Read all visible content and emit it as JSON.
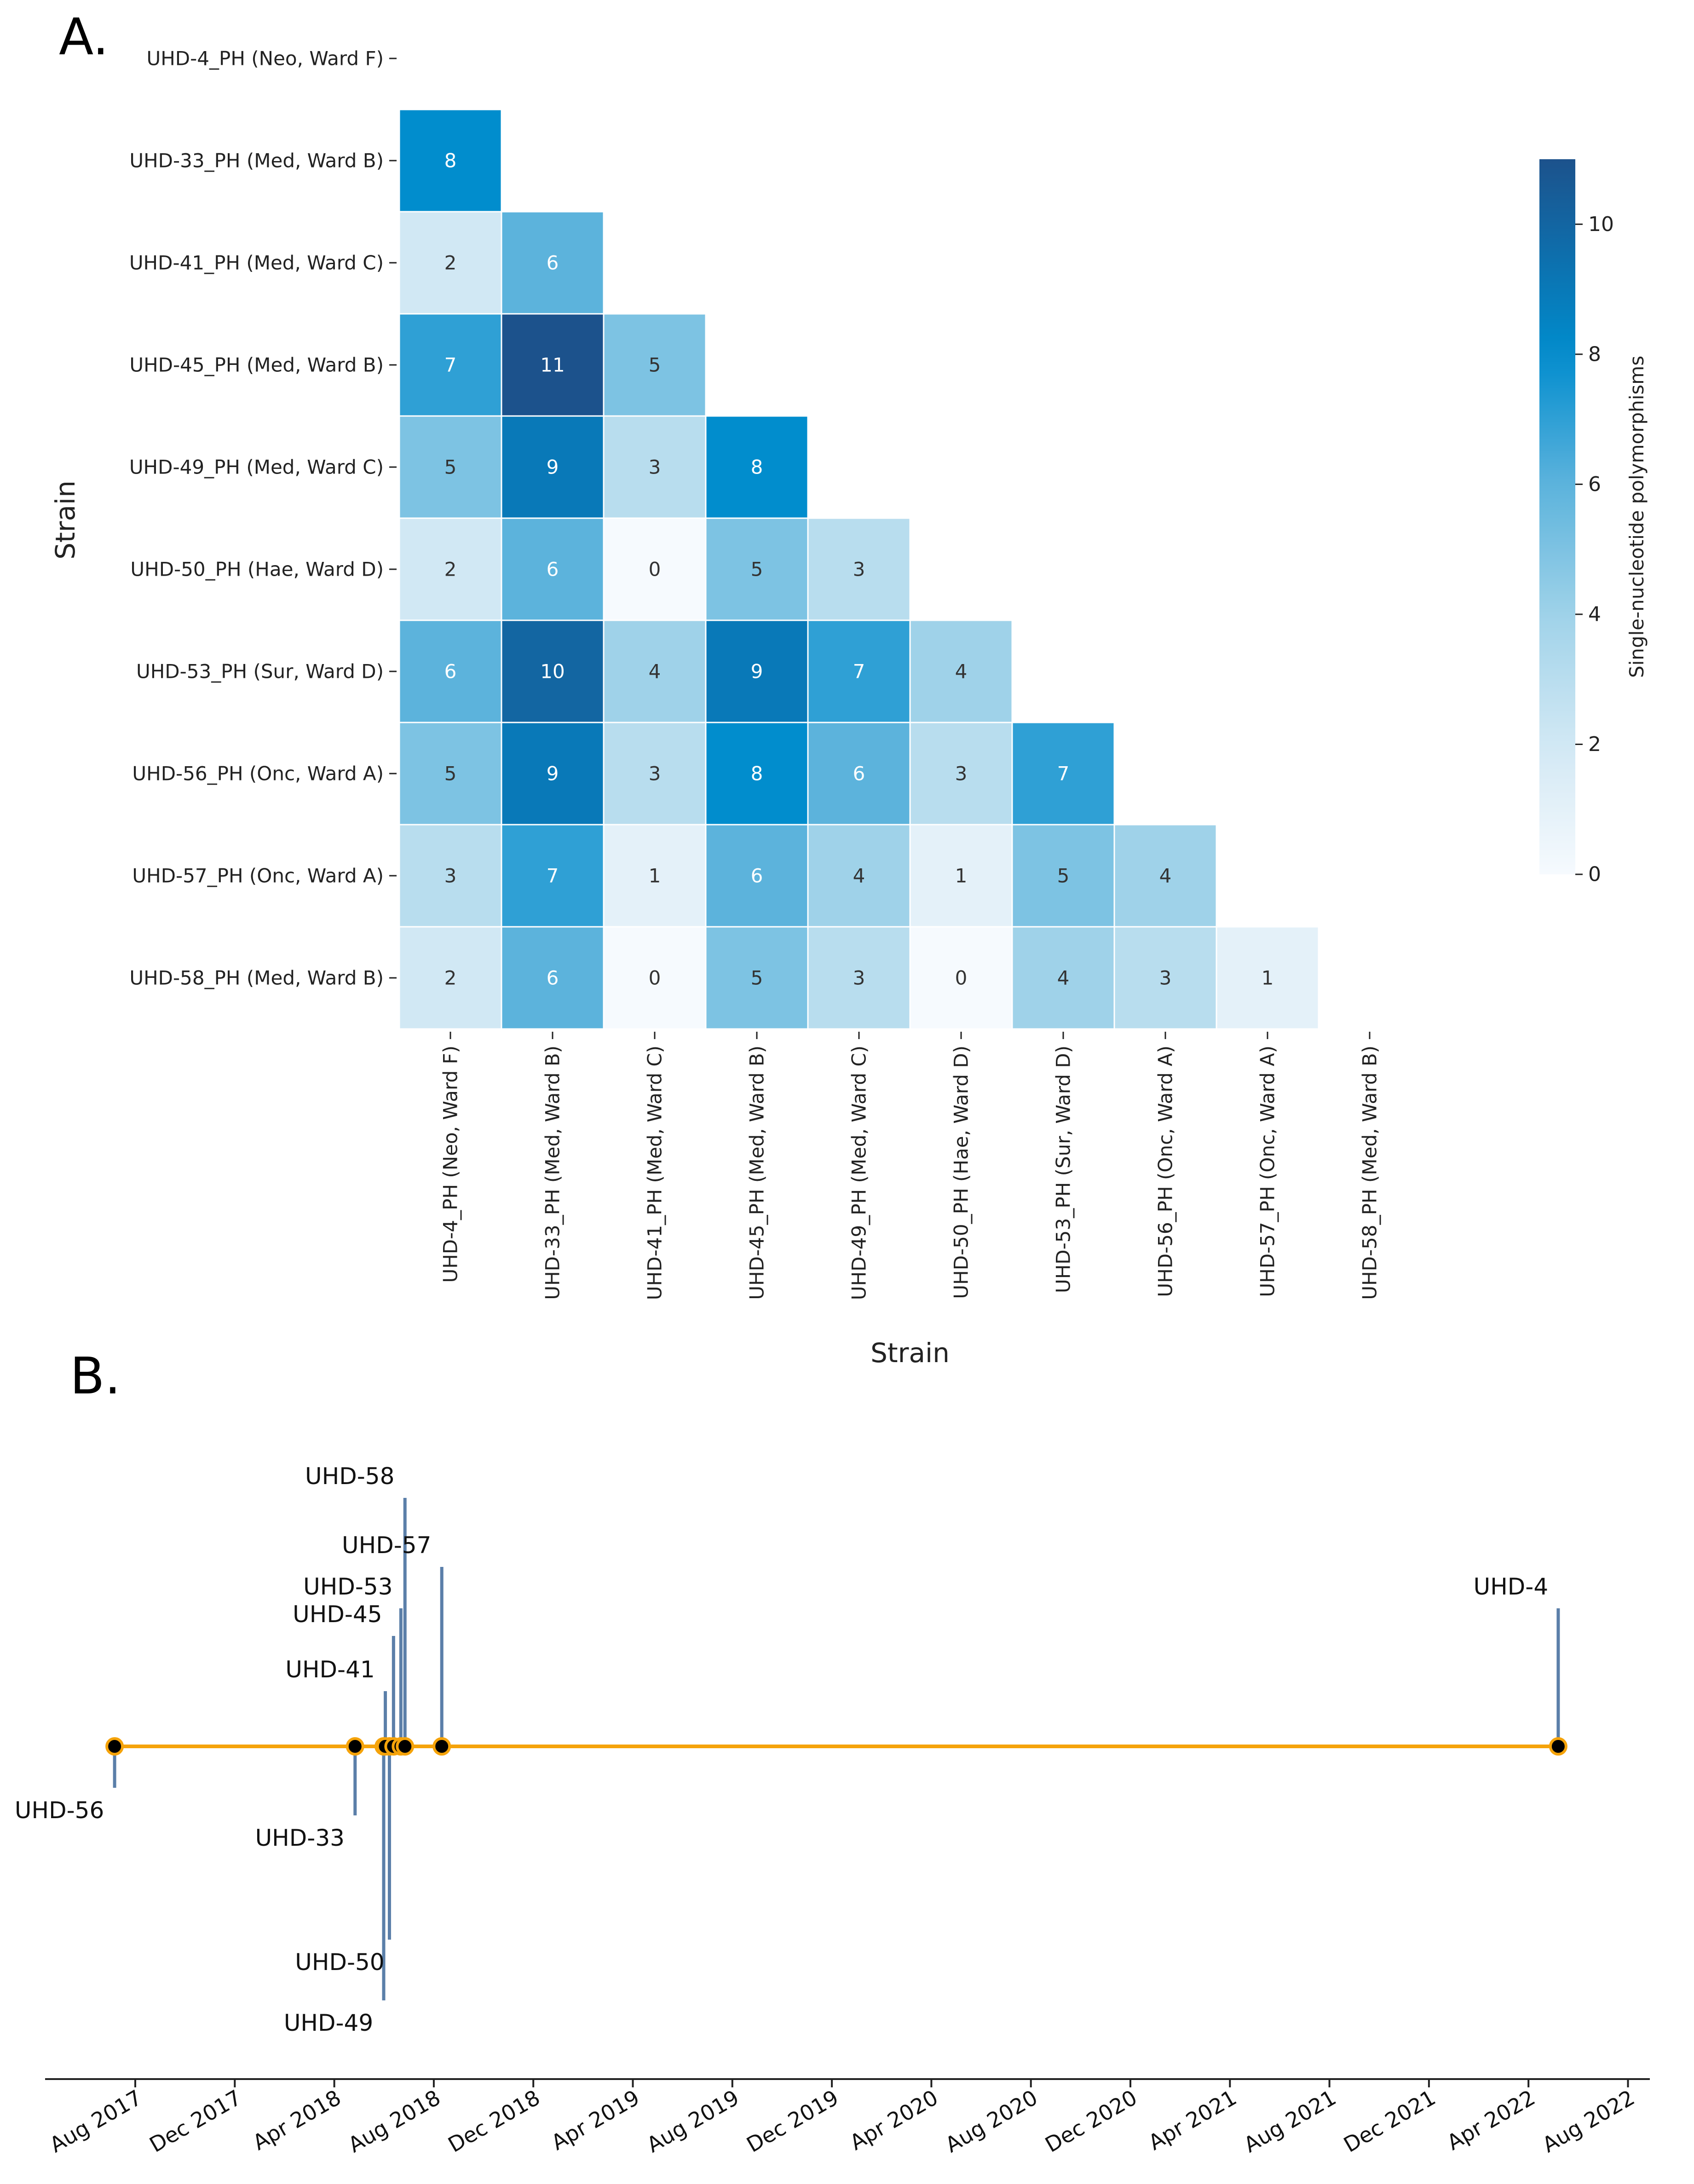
{
  "panels": {
    "a_label": "A.",
    "b_label": "B."
  },
  "chart_data": [
    {
      "type": "heatmap",
      "panel": "A.",
      "rows": [
        "UHD-4_PH (Neo, Ward F)",
        "UHD-33_PH (Med, Ward B)",
        "UHD-41_PH (Med, Ward C)",
        "UHD-45_PH (Med, Ward B)",
        "UHD-49_PH (Med, Ward C)",
        "UHD-50_PH (Hae, Ward D)",
        "UHD-53_PH (Sur, Ward D)",
        "UHD-56_PH (Onc, Ward A)",
        "UHD-57_PH (Onc, Ward A)",
        "UHD-58_PH (Med, Ward B)"
      ],
      "columns": [
        "UHD-4_PH (Neo, Ward F)",
        "UHD-33_PH (Med, Ward B)",
        "UHD-41_PH (Med, Ward C)",
        "UHD-45_PH (Med, Ward B)",
        "UHD-49_PH (Med, Ward C)",
        "UHD-50_PH (Hae, Ward D)",
        "UHD-53_PH (Sur, Ward D)",
        "UHD-56_PH (Onc, Ward A)",
        "UHD-57_PH (Onc, Ward A)",
        "UHD-58_PH (Med, Ward B)"
      ],
      "values": [
        [],
        [
          8
        ],
        [
          2,
          6
        ],
        [
          7,
          11,
          5
        ],
        [
          5,
          9,
          3,
          8
        ],
        [
          2,
          6,
          0,
          5,
          3
        ],
        [
          6,
          10,
          4,
          9,
          7,
          4
        ],
        [
          5,
          9,
          3,
          8,
          6,
          3,
          7
        ],
        [
          3,
          7,
          1,
          6,
          4,
          1,
          5,
          4
        ],
        [
          2,
          6,
          0,
          5,
          3,
          0,
          4,
          3,
          1
        ]
      ],
      "xlabel": "Strain",
      "ylabel": "Strain",
      "colorbar": {
        "label": "Single-nucleotide polymorphisms",
        "range": [
          0,
          11
        ],
        "ticks": [
          "0",
          "2",
          "4",
          "6",
          "8",
          "10"
        ],
        "colormap": "Blues"
      }
    },
    {
      "type": "timeline",
      "panel": "B.",
      "events": [
        {
          "label": "UHD-56",
          "date": "2017-06-25",
          "stem": -0.15
        },
        {
          "label": "UHD-33",
          "date": "2018-04-15",
          "stem": -0.25
        },
        {
          "label": "UHD-49",
          "date": "2018-05-20",
          "stem": -0.92
        },
        {
          "label": "UHD-50",
          "date": "2018-05-27",
          "stem": -0.7
        },
        {
          "label": "UHD-41",
          "date": "2018-05-22",
          "stem": 0.2
        },
        {
          "label": "UHD-45",
          "date": "2018-06-01",
          "stem": 0.4
        },
        {
          "label": "UHD-53",
          "date": "2018-06-10",
          "stem": 0.5
        },
        {
          "label": "UHD-58",
          "date": "2018-06-15",
          "stem": 0.9
        },
        {
          "label": "UHD-57",
          "date": "2018-07-30",
          "stem": 0.65
        },
        {
          "label": "UHD-4",
          "date": "2022-04-25",
          "stem": 0.5
        }
      ],
      "x_range": [
        "2017-04-01",
        "2022-08-15"
      ],
      "x_ticks": [
        "Aug 2017",
        "Dec 2017",
        "Apr 2018",
        "Aug 2018",
        "Dec 2018",
        "Apr 2019",
        "Aug 2019",
        "Dec 2019",
        "Apr 2020",
        "Aug 2020",
        "Dec 2020",
        "Apr 2021",
        "Aug 2021",
        "Dec 2021",
        "Apr 2022",
        "Aug 2022"
      ],
      "line_color": "#f5a30a",
      "stem_color": "#5b7fa9",
      "marker_color": "#000000"
    }
  ]
}
